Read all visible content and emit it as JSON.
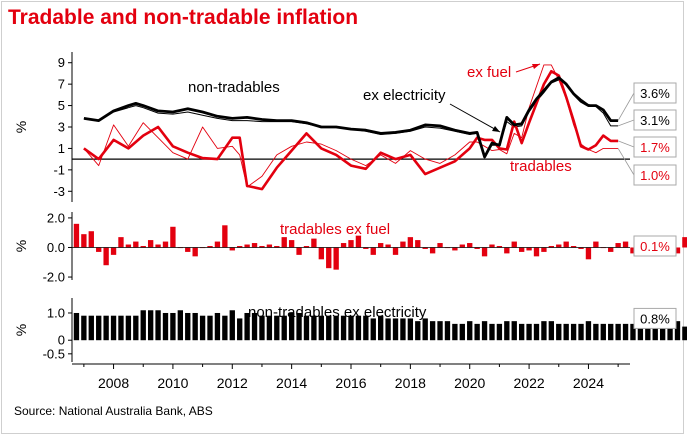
{
  "title": "Tradable and non-tradable inflation",
  "source": "Source: National Australia Bank, ABS",
  "colors": {
    "title": "#e3000f",
    "red": "#e3000f",
    "black": "#000000",
    "axis": "#000000"
  },
  "chart_data": [
    {
      "type": "line",
      "ylabel": "%",
      "yticks": [
        9,
        7,
        5,
        3,
        1,
        -1,
        -3
      ],
      "ylim": [
        -4,
        10
      ],
      "xlim": [
        2006.6,
        2025.4
      ],
      "annotations": [
        "non-tradables",
        "ex electricity",
        "ex fuel",
        "tradables"
      ],
      "end_labels": [
        {
          "text": "3.6%",
          "color": "black"
        },
        {
          "text": "3.1%",
          "color": "black"
        },
        {
          "text": "1.7%",
          "color": "red"
        },
        {
          "text": "1.0%",
          "color": "red"
        }
      ],
      "series": [
        {
          "key": "nontradables",
          "x": [
            2007,
            2007.5,
            2008,
            2008.5,
            2008.75,
            2009,
            2009.5,
            2010,
            2010.5,
            2011,
            2011.5,
            2012,
            2012.5,
            2013,
            2013.5,
            2014,
            2014.5,
            2015,
            2015.5,
            2016,
            2016.5,
            2017,
            2017.5,
            2018,
            2018.5,
            2019,
            2019.5,
            2020,
            2020.25,
            2020.5,
            2020.75,
            2021,
            2021.25,
            2021.5,
            2021.75,
            2022,
            2022.25,
            2022.5,
            2022.75,
            2023,
            2023.25,
            2023.5,
            2023.75,
            2024,
            2024.25,
            2024.5,
            2024.75,
            2025
          ],
          "y": [
            3.8,
            3.6,
            4.5,
            5.0,
            5.2,
            5.0,
            4.5,
            4.4,
            4.7,
            4.4,
            4.0,
            3.8,
            3.9,
            3.7,
            3.6,
            3.6,
            3.4,
            3.0,
            3.0,
            2.8,
            2.7,
            2.4,
            2.5,
            2.7,
            3.2,
            3.1,
            2.7,
            2.4,
            2.5,
            0.2,
            1.5,
            1.3,
            3.9,
            3.2,
            3.3,
            4.6,
            5.6,
            6.4,
            7.2,
            7.6,
            7.0,
            6.1,
            5.4,
            5.0,
            5.0,
            4.6,
            3.6,
            3.6
          ]
        },
        {
          "key": "nontradables_ex_electricity",
          "x": [
            2007,
            2007.5,
            2008,
            2008.5,
            2008.75,
            2009,
            2009.5,
            2010,
            2010.5,
            2011,
            2011.5,
            2012,
            2012.5,
            2013,
            2013.5,
            2014,
            2014.5,
            2015,
            2015.5,
            2016,
            2016.5,
            2017,
            2017.5,
            2018,
            2018.5,
            2019,
            2019.5,
            2020,
            2020.25,
            2020.5,
            2020.75,
            2021,
            2021.25,
            2021.5,
            2021.75,
            2022,
            2022.25,
            2022.5,
            2022.75,
            2023,
            2023.25,
            2023.5,
            2023.75,
            2024,
            2024.25,
            2024.5,
            2024.75,
            2025
          ],
          "y": [
            3.8,
            3.6,
            4.4,
            4.8,
            5.0,
            4.8,
            4.3,
            4.2,
            4.4,
            4.1,
            3.8,
            3.6,
            3.6,
            3.5,
            3.5,
            3.5,
            3.3,
            3.0,
            3.0,
            2.8,
            2.6,
            2.3,
            2.4,
            2.6,
            3.0,
            2.9,
            2.6,
            2.3,
            2.4,
            0.2,
            1.3,
            1.3,
            3.5,
            3.0,
            3.1,
            4.4,
            5.4,
            6.2,
            7.1,
            7.4,
            7.0,
            6.2,
            5.6,
            5.1,
            4.9,
            4.3,
            3.1,
            3.1
          ]
        },
        {
          "key": "tradables",
          "x": [
            2007,
            2007.5,
            2008,
            2008.5,
            2009,
            2009.5,
            2010,
            2010.5,
            2011,
            2011.5,
            2012,
            2012.25,
            2012.5,
            2013,
            2013.5,
            2014,
            2014.5,
            2015,
            2015.5,
            2016,
            2016.5,
            2017,
            2017.5,
            2018,
            2018.5,
            2019,
            2019.5,
            2020,
            2020.25,
            2020.5,
            2020.75,
            2021,
            2021.25,
            2021.5,
            2021.75,
            2022,
            2022.5,
            2022.75,
            2023,
            2023.25,
            2023.5,
            2023.75,
            2024,
            2024.25,
            2024.5,
            2024.75,
            2025
          ],
          "y": [
            1.0,
            0.0,
            1.8,
            1.0,
            2.2,
            3.0,
            1.2,
            0.6,
            0.1,
            0.0,
            2.0,
            2.0,
            -2.5,
            -2.8,
            -0.8,
            0.8,
            2.4,
            1.0,
            0.4,
            -0.6,
            -0.9,
            0.6,
            0.0,
            0.4,
            -1.4,
            -0.8,
            -0.2,
            1.0,
            2.0,
            1.8,
            1.8,
            1.0,
            0.9,
            3.5,
            1.5,
            3.4,
            7.0,
            8.2,
            7.8,
            5.8,
            3.6,
            1.2,
            0.9,
            1.3,
            2.2,
            1.7,
            1.7
          ]
        },
        {
          "key": "tradables_ex_fuel",
          "x": [
            2007,
            2007.5,
            2008,
            2008.5,
            2009,
            2009.5,
            2010,
            2010.5,
            2011,
            2011.5,
            2012,
            2012.25,
            2012.5,
            2013,
            2013.5,
            2014,
            2014.5,
            2015,
            2015.5,
            2016,
            2016.5,
            2017,
            2017.5,
            2018,
            2018.5,
            2019,
            2019.5,
            2020,
            2020.25,
            2020.5,
            2020.75,
            2021,
            2021.25,
            2021.5,
            2021.75,
            2022,
            2022.5,
            2022.75,
            2023,
            2023.25,
            2023.5,
            2023.75,
            2024,
            2024.25,
            2024.5,
            2024.75,
            2025
          ],
          "y": [
            1.0,
            -0.6,
            3.2,
            1.2,
            3.4,
            2.0,
            0.6,
            0.0,
            3.0,
            1.0,
            1.2,
            0.4,
            -2.6,
            -1.6,
            0.4,
            1.2,
            1.6,
            1.4,
            0.8,
            0.0,
            -0.6,
            0.4,
            -0.4,
            0.8,
            0.0,
            -0.4,
            0.4,
            1.6,
            1.6,
            1.2,
            0.8,
            0.9,
            0.5,
            2.4,
            2.0,
            4.8,
            8.8,
            8.8,
            7.4,
            5.6,
            3.2,
            1.4,
            0.9,
            0.6,
            1.0,
            1.0,
            1.0
          ]
        }
      ]
    },
    {
      "type": "bar",
      "ylabel": "%",
      "yticks": [
        2.0,
        0.0,
        -2.0
      ],
      "ytick_labels": [
        "2.0",
        "0.0",
        "-2.0"
      ],
      "ylim": [
        -2.2,
        2.4
      ],
      "annotation": "tradables ex fuel",
      "end_label": "0.1%",
      "series": [
        {
          "name": "tradables ex fuel",
          "x_start": 2006.75,
          "x_step": 0.25,
          "values": [
            1.6,
            0.9,
            1.1,
            -0.3,
            -1.2,
            -0.5,
            0.7,
            0.2,
            0.4,
            0.1,
            0.5,
            0.2,
            0.4,
            1.4,
            0.0,
            -0.3,
            -0.6,
            0.0,
            0.1,
            0.4,
            1.5,
            -0.2,
            0.1,
            0.2,
            0.3,
            0.1,
            0.2,
            0.1,
            0.7,
            0.5,
            -0.5,
            0.1,
            0.6,
            -0.8,
            -1.4,
            -1.5,
            0.3,
            0.5,
            0.8,
            -0.1,
            -0.5,
            0.3,
            0.2,
            -0.5,
            0.4,
            0.7,
            0.5,
            -0.1,
            -0.4,
            0.3,
            0.0,
            -0.2,
            0.2,
            0.3,
            -0.1,
            -0.6,
            0.2,
            0.1,
            -0.4,
            0.4,
            -0.3,
            -0.2,
            -0.6,
            -0.3,
            0.1,
            0.2,
            0.4,
            0.1,
            -0.1,
            -0.8,
            0.4,
            0.0,
            -0.3,
            0.3,
            0.4,
            -0.4,
            0.2,
            0.6,
            0.5,
            0.3,
            0.6,
            -0.4,
            0.7,
            0.4,
            0.0,
            -0.2,
            0.5,
            0.8,
            0.4,
            0.6,
            0.4,
            1.8,
            2.0,
            2.1,
            2.0,
            1.7,
            0.8,
            0.8,
            0.1,
            0.3,
            0.2,
            0.5,
            0.6,
            0.5,
            0.4,
            0.1
          ]
        }
      ]
    },
    {
      "type": "bar",
      "ylabel": "%",
      "yticks": [
        1.0,
        0.0,
        -0.5
      ],
      "ytick_labels": [
        "1.0",
        "0",
        "-0.5"
      ],
      "ylim": [
        -0.8,
        1.55
      ],
      "xticks": [
        2008,
        2010,
        2012,
        2014,
        2016,
        2018,
        2020,
        2022,
        2024
      ],
      "annotation": "non-tradables ex electricity",
      "end_label": "0.8%",
      "series": [
        {
          "name": "non-tradables ex electricity",
          "x_start": 2006.75,
          "x_step": 0.25,
          "values": [
            1.0,
            0.9,
            0.9,
            0.9,
            0.9,
            0.9,
            0.9,
            0.9,
            0.9,
            1.1,
            1.1,
            1.1,
            1.0,
            1.0,
            1.1,
            1.0,
            1.0,
            0.9,
            0.9,
            1.0,
            0.9,
            1.1,
            0.8,
            1.0,
            1.0,
            0.9,
            0.9,
            0.9,
            0.9,
            1.0,
            1.0,
            0.9,
            0.9,
            0.9,
            0.9,
            0.9,
            0.9,
            0.9,
            0.9,
            0.9,
            0.8,
            0.9,
            0.8,
            0.8,
            0.8,
            0.8,
            0.7,
            0.8,
            0.7,
            0.7,
            0.7,
            0.6,
            0.6,
            0.7,
            0.6,
            0.7,
            0.6,
            0.6,
            0.7,
            0.7,
            0.6,
            0.6,
            0.6,
            0.7,
            0.7,
            0.6,
            0.6,
            0.6,
            0.6,
            0.7,
            0.6,
            0.6,
            0.6,
            0.6,
            0.6,
            0.6,
            0.7,
            0.6,
            0.6,
            0.5,
            0.6,
            0.7,
            0.5,
            0.6,
            0.5,
            0.7,
            -0.7,
            1.3,
            1.2,
            0.5,
            0.6,
            0.5,
            0.8,
            1.1,
            1.2,
            1.2,
            1.4,
            1.3,
            1.1,
            1.1,
            1.1,
            1.1,
            1.0,
            0.9,
            1.0,
            0.8,
            0.8
          ]
        }
      ]
    }
  ]
}
